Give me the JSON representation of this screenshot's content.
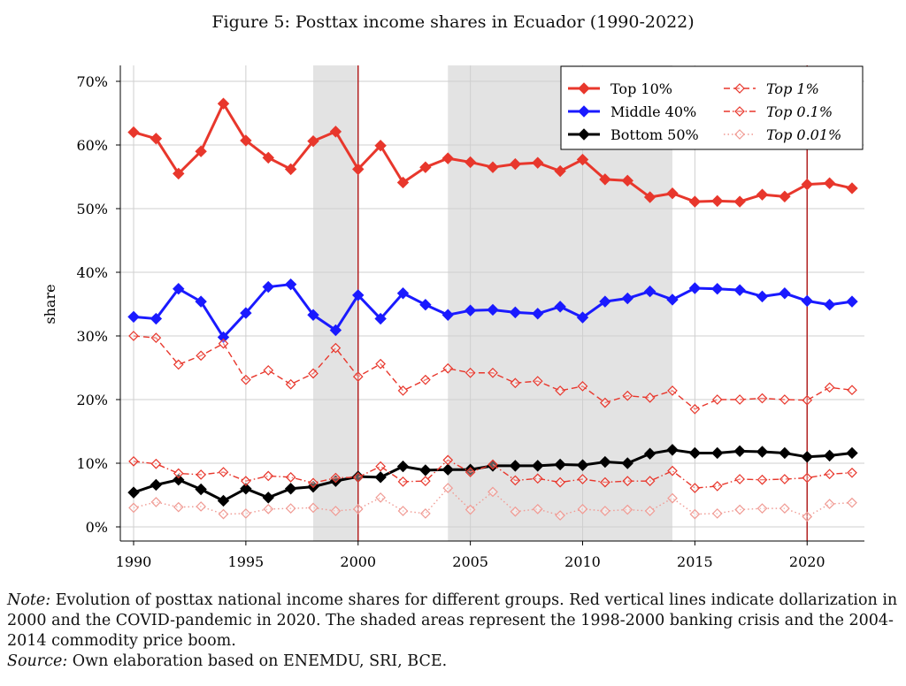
{
  "figure": {
    "title": "Figure 5: Posttax income shares in Ecuador (1990-2022)",
    "note_label": "Note:",
    "note_text": "Evolution of posttax national income shares for different groups. Red vertical lines indicate dollarization in 2000 and the COVID-pandemic in 2020. The shaded areas represent the 1998-2000 banking crisis and the 2004-2014 commodity price boom.",
    "source_label": "Source:",
    "source_text": "Own elaboration based on ENEMDU, SRI, BCE."
  },
  "chart_data": {
    "type": "line",
    "title": "Figure 5: Posttax income shares in Ecuador (1990-2022)",
    "xlabel": "",
    "ylabel": "share",
    "xlim": [
      1990,
      2022
    ],
    "ylim": [
      0,
      70
    ],
    "x_ticks": [
      1990,
      1995,
      2000,
      2005,
      2010,
      2015,
      2020
    ],
    "x_tick_labels": [
      "1990",
      "1995",
      "2000",
      "2005",
      "2010",
      "2015",
      "2020"
    ],
    "y_ticks": [
      0,
      10,
      20,
      30,
      40,
      50,
      60,
      70
    ],
    "y_tick_labels": [
      "0%",
      "10%",
      "20%",
      "30%",
      "40%",
      "50%",
      "60%",
      "70%"
    ],
    "grid": true,
    "legend_position": "top-right",
    "vlines": [
      {
        "x": 2000,
        "color": "#b22222"
      },
      {
        "x": 2020,
        "color": "#b22222"
      }
    ],
    "shaded_regions": [
      {
        "from": 1998,
        "to": 2000,
        "color": "#e3e3e3"
      },
      {
        "from": 2004,
        "to": 2014,
        "color": "#e3e3e3"
      }
    ],
    "x": [
      1990,
      1991,
      1992,
      1993,
      1994,
      1995,
      1996,
      1997,
      1998,
      1999,
      2000,
      2001,
      2002,
      2003,
      2004,
      2005,
      2006,
      2007,
      2008,
      2009,
      2010,
      2011,
      2012,
      2013,
      2014,
      2015,
      2016,
      2017,
      2018,
      2019,
      2020,
      2021,
      2022
    ],
    "series": [
      {
        "name": "Top 10%",
        "color": "#e8372c",
        "line": "solid",
        "marker": "filled-diamond",
        "values": [
          62.0,
          61.0,
          55.5,
          59.0,
          66.5,
          60.7,
          58.0,
          56.2,
          60.6,
          62.1,
          56.2,
          59.9,
          54.1,
          56.5,
          57.9,
          57.3,
          56.5,
          57.0,
          57.2,
          55.9,
          57.7,
          54.6,
          54.4,
          51.8,
          52.4,
          51.1,
          51.2,
          51.1,
          52.2,
          51.9,
          53.8,
          54.0,
          53.2
        ]
      },
      {
        "name": "Middle 40%",
        "color": "#1a1aff",
        "line": "solid",
        "marker": "filled-diamond",
        "values": [
          33.0,
          32.7,
          37.4,
          35.4,
          29.8,
          33.6,
          37.7,
          38.1,
          33.3,
          30.9,
          36.4,
          32.7,
          36.7,
          34.9,
          33.3,
          34.0,
          34.1,
          33.7,
          33.5,
          34.6,
          32.9,
          35.4,
          35.9,
          37.0,
          35.7,
          37.5,
          37.4,
          37.2,
          36.2,
          36.7,
          35.5,
          34.9,
          35.4
        ]
      },
      {
        "name": "Bottom 50%",
        "color": "#000000",
        "line": "solid",
        "marker": "filled-diamond",
        "values": [
          5.4,
          6.6,
          7.4,
          5.9,
          4.1,
          6.0,
          4.6,
          6.0,
          6.3,
          7.2,
          7.9,
          7.8,
          9.5,
          8.9,
          9.0,
          9.0,
          9.6,
          9.6,
          9.6,
          9.8,
          9.7,
          10.2,
          10.0,
          11.5,
          12.1,
          11.6,
          11.6,
          11.9,
          11.8,
          11.6,
          11.0,
          11.2,
          11.6
        ]
      },
      {
        "name": "Top 1%",
        "color": "#e8372c",
        "line": "dashed",
        "marker": "open-diamond",
        "values": [
          30.0,
          29.7,
          25.5,
          26.9,
          28.8,
          23.1,
          24.6,
          22.4,
          24.1,
          28.1,
          23.6,
          25.6,
          21.4,
          23.1,
          24.9,
          24.2,
          24.2,
          22.6,
          22.9,
          21.4,
          22.1,
          19.5,
          20.6,
          20.3,
          21.4,
          18.5,
          20.0,
          20.0,
          20.2,
          20.0,
          19.9,
          21.9,
          21.5
        ]
      },
      {
        "name": "Top 0.1%",
        "color": "#e8372c",
        "line": "dashdot",
        "marker": "open-diamond",
        "values": [
          10.3,
          9.9,
          8.4,
          8.2,
          8.6,
          7.2,
          8.0,
          7.8,
          6.9,
          7.7,
          7.8,
          9.5,
          7.1,
          7.2,
          10.5,
          8.6,
          9.8,
          7.3,
          7.6,
          7.0,
          7.5,
          7.0,
          7.2,
          7.2,
          8.8,
          6.1,
          6.4,
          7.5,
          7.4,
          7.5,
          7.7,
          8.3,
          8.5
        ]
      },
      {
        "name": "Top 0.01%",
        "color": "#f09a93",
        "line": "dotted",
        "marker": "open-diamond",
        "values": [
          3.0,
          3.9,
          3.1,
          3.2,
          2.0,
          2.1,
          2.8,
          2.9,
          3.0,
          2.5,
          2.8,
          4.6,
          2.5,
          2.1,
          6.1,
          2.7,
          5.5,
          2.4,
          2.8,
          1.8,
          2.8,
          2.5,
          2.7,
          2.5,
          4.5,
          2.0,
          2.1,
          2.7,
          2.9,
          2.9,
          1.6,
          3.6,
          3.8
        ]
      }
    ],
    "legend": [
      {
        "label": "Top 10%",
        "italic": false
      },
      {
        "label": "Middle 40%",
        "italic": false
      },
      {
        "label": "Bottom 50%",
        "italic": false
      },
      {
        "label": "Top 1%",
        "italic": true
      },
      {
        "label": "Top 0.1%",
        "italic": true
      },
      {
        "label": "Top 0.01%",
        "italic": true
      }
    ]
  }
}
